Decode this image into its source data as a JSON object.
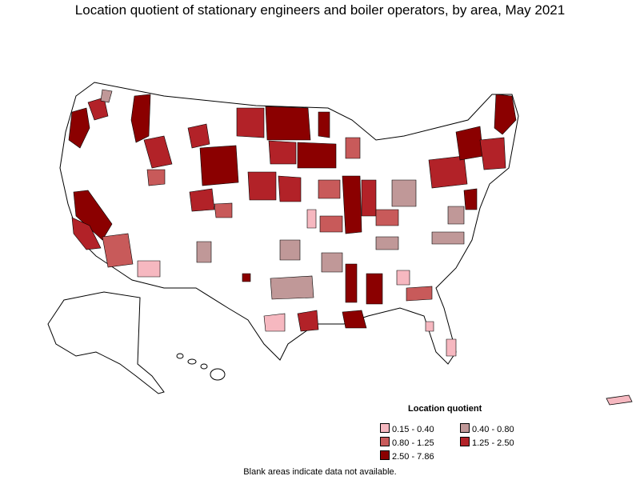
{
  "title": "Location quotient of stationary engineers and boiler operators, by area, May 2021",
  "legend": {
    "title": "Location quotient",
    "items": [
      {
        "label": "0.15 - 0.40",
        "color": "#f6b8c0"
      },
      {
        "label": "0.40 - 0.80",
        "color": "#c09898"
      },
      {
        "label": "0.80 - 1.25",
        "color": "#c85a5a"
      },
      {
        "label": "1.25 - 2.50",
        "color": "#b22228"
      },
      {
        "label": "2.50 - 7.86",
        "color": "#8b0000"
      }
    ]
  },
  "footnote": "Blank areas indicate data not available.",
  "colors": {
    "outline": "#000000",
    "land": "#ffffff"
  }
}
